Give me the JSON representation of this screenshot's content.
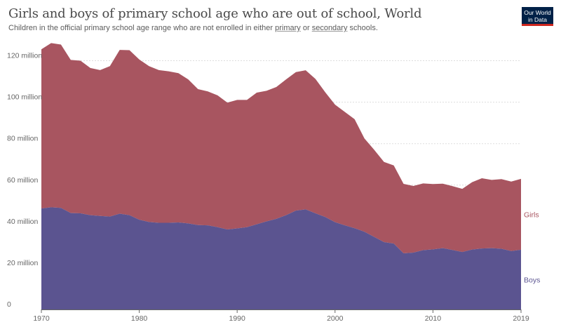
{
  "header": {
    "title": "Girls and boys of primary school age who are out of school, World",
    "subtitle_pre": "Children in the official primary school age range who are not enrolled in either ",
    "subtitle_link1": "primary",
    "subtitle_mid": " or ",
    "subtitle_link2": "secondary",
    "subtitle_post": " schools."
  },
  "logo": {
    "line1": "Our World",
    "line2": "in Data"
  },
  "colors": {
    "boys": "#5b5490",
    "girls": "#a85560",
    "grid": "#dddddd",
    "axis": "#666666"
  },
  "chart_data": {
    "type": "area",
    "stacked": true,
    "x": [
      1970,
      1971,
      1972,
      1973,
      1974,
      1975,
      1976,
      1977,
      1978,
      1979,
      1980,
      1981,
      1982,
      1983,
      1984,
      1985,
      1986,
      1987,
      1988,
      1989,
      1990,
      1991,
      1992,
      1993,
      1994,
      1995,
      1996,
      1997,
      1998,
      1999,
      2000,
      2001,
      2002,
      2003,
      2004,
      2005,
      2006,
      2007,
      2008,
      2009,
      2010,
      2011,
      2012,
      2013,
      2014,
      2015,
      2016,
      2017,
      2018,
      2019
    ],
    "series": [
      {
        "name": "Boys",
        "values": [
          48.7,
          49.3,
          49.0,
          46.5,
          46.4,
          45.5,
          45.1,
          44.8,
          46.2,
          45.5,
          43.3,
          42.2,
          41.8,
          41.8,
          42.0,
          41.5,
          40.7,
          40.6,
          39.7,
          38.6,
          39.1,
          39.7,
          41.1,
          42.5,
          43.7,
          45.5,
          47.7,
          48.3,
          46.4,
          44.6,
          42.1,
          40.6,
          39.2,
          37.5,
          35.0,
          32.5,
          31.8,
          27.1,
          27.4,
          28.6,
          29.0,
          29.6,
          28.7,
          27.7,
          28.9,
          29.4,
          29.6,
          29.3,
          28.2,
          28.8
        ]
      },
      {
        "name": "Girls",
        "values": [
          76.8,
          79.2,
          78.8,
          73.9,
          73.6,
          71.0,
          70.4,
          72.6,
          79.0,
          79.6,
          77.3,
          75.2,
          73.7,
          73.1,
          72.0,
          69.5,
          65.6,
          64.6,
          63.6,
          61.2,
          62.0,
          61.4,
          63.5,
          63.0,
          63.6,
          65.5,
          66.8,
          67.1,
          64.8,
          60.2,
          56.7,
          54.7,
          52.6,
          45.0,
          42.0,
          38.7,
          37.7,
          33.5,
          32.2,
          32.2,
          31.5,
          31.1,
          30.8,
          30.5,
          32.5,
          33.9,
          32.9,
          33.6,
          33.5,
          34.2
        ]
      }
    ],
    "y_ticks": [
      "0",
      "20 million",
      "40 million",
      "60 million",
      "80 million",
      "100 million",
      "120 million"
    ],
    "x_ticks": [
      "1970",
      "1980",
      "1990",
      "2000",
      "2010",
      "2019"
    ],
    "ylim": [
      0,
      130000000
    ],
    "xlim": [
      1970,
      2019
    ],
    "grid": true,
    "legend": "right-end labels"
  }
}
